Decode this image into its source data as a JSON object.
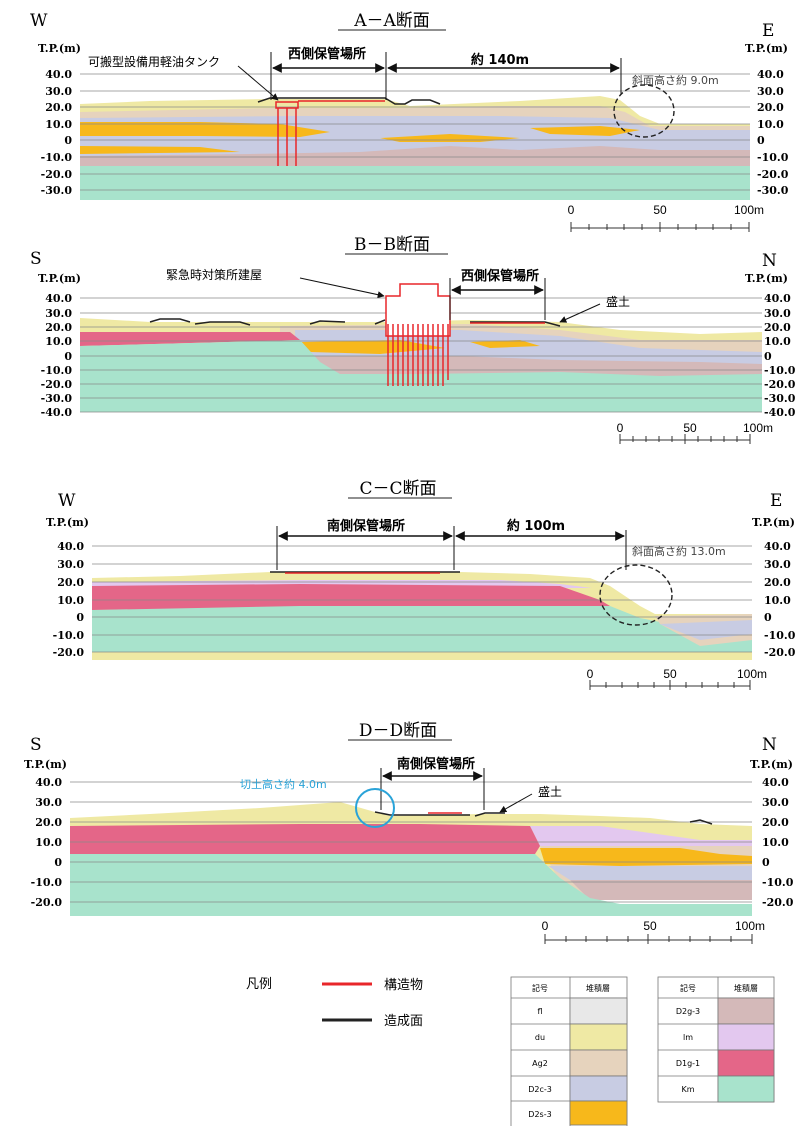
{
  "sections": [
    {
      "title": "A－A断面",
      "left_dir": "W",
      "right_dir": "E",
      "tp_label": "T.P.(m)",
      "y_ticks": [
        "40.0",
        "30.0",
        "20.0",
        "10.0",
        "0",
        "-10.0",
        "-20.0",
        "-30.0"
      ],
      "facility": "西側保管場所",
      "distance": "約 140m",
      "tank": "可搬型設備用軽油タンク",
      "slope": "斜面高さ約 9.0m"
    },
    {
      "title": "B－B断面",
      "left_dir": "S",
      "right_dir": "N",
      "tp_label": "T.P.(m)",
      "y_ticks": [
        "40.0",
        "30.0",
        "20.0",
        "10.0",
        "0",
        "-10.0",
        "-20.0",
        "-30.0",
        "-40.0"
      ],
      "facility": "西側保管場所",
      "building": "緊急時対策所建屋",
      "fill": "盛土"
    },
    {
      "title": "C－C断面",
      "left_dir": "W",
      "right_dir": "E",
      "tp_label": "T.P.(m)",
      "y_ticks": [
        "40.0",
        "30.0",
        "20.0",
        "10.0",
        "0",
        "-10.0",
        "-20.0"
      ],
      "facility": "南側保管場所",
      "distance": "約 100m",
      "slope": "斜面高さ約 13.0m"
    },
    {
      "title": "D－D断面",
      "left_dir": "S",
      "right_dir": "N",
      "tp_label": "T.P.(m)",
      "y_ticks": [
        "40.0",
        "30.0",
        "20.0",
        "10.0",
        "0",
        "-10.0",
        "-20.0"
      ],
      "facility": "南側保管場所",
      "cut": "切土高さ約 4.0m",
      "fill": "盛土"
    }
  ],
  "scale": {
    "labels": [
      "0",
      "50",
      "100m"
    ]
  },
  "legend": {
    "title": "凡例",
    "structure": "構造物",
    "surface": "造成面",
    "structure_color": "#e8262a",
    "surface_color": "#222222",
    "table_header": {
      "symbol": "記号",
      "layer": "堆積層"
    },
    "layers_left": [
      {
        "code": "fl",
        "color": "#e8e8e8"
      },
      {
        "code": "du",
        "color": "#efe9a4"
      },
      {
        "code": "Ag2",
        "color": "#e6d3bd"
      },
      {
        "code": "D2c-3",
        "color": "#c8cce3"
      },
      {
        "code": "D2s-3",
        "color": "#f7b81b"
      }
    ],
    "layers_right": [
      {
        "code": "D2g-3",
        "color": "#d4b9b9"
      },
      {
        "code": "lm",
        "color": "#e3c8ef"
      },
      {
        "code": "D1g-1",
        "color": "#e46688"
      },
      {
        "code": "Km",
        "color": "#a8e3cc"
      }
    ]
  }
}
